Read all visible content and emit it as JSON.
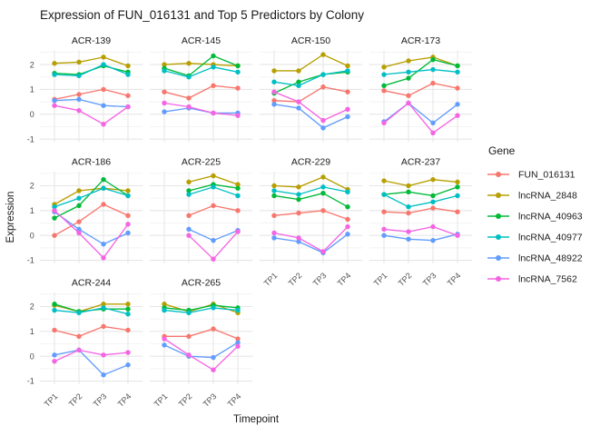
{
  "title": "Expression of FUN_016131 and Top 5 Predictors by Colony",
  "axes": {
    "x_title": "Timepoint",
    "y_title": "Expression",
    "x_ticks": [
      "TP1",
      "TP2",
      "TP3",
      "TP4"
    ],
    "y_ticks": [
      "2",
      "1",
      "0",
      "-1"
    ]
  },
  "legend": {
    "title": "Gene",
    "entries": [
      {
        "label": "FUN_016131",
        "color": "#F8766D"
      },
      {
        "label": "lncRNA_2848",
        "color": "#B79F00"
      },
      {
        "label": "lncRNA_40963",
        "color": "#00BA38"
      },
      {
        "label": "lncRNA_40977",
        "color": "#00BFC4"
      },
      {
        "label": "lncRNA_48922",
        "color": "#619CFF"
      },
      {
        "label": "lncRNA_7562",
        "color": "#F564E3"
      }
    ]
  },
  "chart_data": {
    "type": "line",
    "categories": [
      "TP1",
      "TP2",
      "TP3",
      "TP4"
    ],
    "ylim": [
      -1,
      2
    ],
    "grid": "major+minor-horizontal, major-vertical",
    "legend_position": "right",
    "facets": [
      {
        "name": "ACR-139",
        "series": {
          "FUN_016131": [
            0.6,
            0.8,
            1.0,
            0.75
          ],
          "lncRNA_2848": [
            2.05,
            2.1,
            2.3,
            1.95
          ],
          "lncRNA_40963": [
            1.65,
            1.6,
            1.95,
            1.7
          ],
          "lncRNA_40977": [
            1.6,
            1.55,
            2.0,
            1.6
          ],
          "lncRNA_48922": [
            0.55,
            0.6,
            0.35,
            0.3
          ],
          "lncRNA_7562": [
            0.35,
            0.15,
            -0.4,
            0.3
          ]
        }
      },
      {
        "name": "ACR-145",
        "series": {
          "FUN_016131": [
            0.9,
            0.65,
            1.15,
            1.05
          ],
          "lncRNA_2848": [
            2.0,
            2.05,
            2.0,
            1.95
          ],
          "lncRNA_40963": [
            1.85,
            1.55,
            2.35,
            1.95
          ],
          "lncRNA_40977": [
            1.75,
            1.5,
            1.9,
            1.7
          ],
          "lncRNA_48922": [
            0.1,
            0.25,
            0.05,
            0.05
          ],
          "lncRNA_7562": [
            0.45,
            0.3,
            0.05,
            -0.05
          ]
        }
      },
      {
        "name": "ACR-150",
        "series": {
          "FUN_016131": [
            0.55,
            0.5,
            1.1,
            0.9
          ],
          "lncRNA_2848": [
            1.75,
            1.75,
            2.4,
            1.95
          ],
          "lncRNA_40963": [
            0.85,
            1.3,
            1.6,
            1.7
          ],
          "lncRNA_40977": [
            1.3,
            1.15,
            1.6,
            1.75
          ],
          "lncRNA_48922": [
            0.4,
            0.25,
            -0.55,
            -0.1
          ],
          "lncRNA_7562": [
            0.9,
            0.5,
            -0.25,
            0.2
          ]
        }
      },
      {
        "name": "ACR-173",
        "series": {
          "FUN_016131": [
            0.95,
            0.75,
            1.25,
            1.05
          ],
          "lncRNA_2848": [
            1.9,
            2.15,
            2.3,
            1.95
          ],
          "lncRNA_40963": [
            1.15,
            1.45,
            2.2,
            1.95
          ],
          "lncRNA_40977": [
            1.6,
            1.7,
            1.8,
            1.7
          ],
          "lncRNA_48922": [
            -0.3,
            0.45,
            -0.35,
            0.4
          ],
          "lncRNA_7562": [
            -0.35,
            0.45,
            -0.75,
            -0.05
          ]
        }
      },
      {
        "name": "ACR-186",
        "series": {
          "FUN_016131": [
            0.0,
            0.55,
            1.25,
            0.8
          ],
          "lncRNA_2848": [
            1.25,
            1.8,
            1.9,
            1.8
          ],
          "lncRNA_40963": [
            0.7,
            1.2,
            2.25,
            1.6
          ],
          "lncRNA_40977": [
            1.15,
            1.5,
            1.9,
            1.6
          ],
          "lncRNA_48922": [
            0.95,
            0.25,
            -0.35,
            0.1
          ],
          "lncRNA_7562": [
            1.0,
            0.1,
            -0.9,
            0.45
          ]
        }
      },
      {
        "name": "ACR-225",
        "series": {
          "FUN_016131": [
            null,
            0.8,
            1.2,
            1.0
          ],
          "lncRNA_2848": [
            null,
            2.15,
            2.4,
            2.05
          ],
          "lncRNA_40963": [
            null,
            1.8,
            2.05,
            1.9
          ],
          "lncRNA_40977": [
            null,
            1.65,
            1.95,
            1.6
          ],
          "lncRNA_48922": [
            null,
            0.25,
            -0.2,
            0.2
          ],
          "lncRNA_7562": [
            null,
            0.0,
            -0.95,
            0.15
          ]
        }
      },
      {
        "name": "ACR-229",
        "series": {
          "FUN_016131": [
            0.8,
            0.9,
            1.0,
            0.65
          ],
          "lncRNA_2848": [
            2.0,
            1.95,
            2.35,
            1.85
          ],
          "lncRNA_40963": [
            1.6,
            1.45,
            1.7,
            1.15
          ],
          "lncRNA_40977": [
            1.8,
            1.65,
            1.95,
            1.75
          ],
          "lncRNA_48922": [
            -0.1,
            -0.25,
            -0.7,
            0.05
          ],
          "lncRNA_7562": [
            0.1,
            -0.1,
            -0.65,
            0.35
          ]
        }
      },
      {
        "name": "ACR-237",
        "series": {
          "FUN_016131": [
            0.95,
            0.9,
            1.1,
            0.95
          ],
          "lncRNA_2848": [
            2.2,
            2.0,
            2.25,
            2.15
          ],
          "lncRNA_40963": [
            1.65,
            1.75,
            1.6,
            1.95
          ],
          "lncRNA_40977": [
            1.65,
            1.15,
            1.35,
            1.6
          ],
          "lncRNA_48922": [
            0.0,
            -0.15,
            -0.2,
            0.05
          ],
          "lncRNA_7562": [
            0.25,
            0.15,
            0.35,
            0.0
          ]
        }
      },
      {
        "name": "ACR-244",
        "series": {
          "FUN_016131": [
            1.05,
            0.8,
            1.2,
            1.05
          ],
          "lncRNA_2848": [
            2.05,
            1.8,
            2.1,
            2.1
          ],
          "lncRNA_40963": [
            2.1,
            1.8,
            1.9,
            1.9
          ],
          "lncRNA_40977": [
            1.85,
            1.75,
            1.95,
            1.7
          ],
          "lncRNA_48922": [
            0.05,
            0.25,
            -0.75,
            -0.35
          ],
          "lncRNA_7562": [
            -0.2,
            0.25,
            0.05,
            0.15
          ]
        }
      },
      {
        "name": "ACR-265",
        "series": {
          "FUN_016131": [
            0.8,
            0.8,
            1.1,
            0.7
          ],
          "lncRNA_2848": [
            2.1,
            1.8,
            2.1,
            1.75
          ],
          "lncRNA_40963": [
            1.95,
            1.85,
            2.05,
            1.95
          ],
          "lncRNA_40977": [
            1.85,
            1.75,
            1.95,
            1.85
          ],
          "lncRNA_48922": [
            0.45,
            0.0,
            -0.05,
            0.55
          ],
          "lncRNA_7562": [
            0.7,
            0.05,
            -0.55,
            0.4
          ]
        }
      }
    ]
  }
}
